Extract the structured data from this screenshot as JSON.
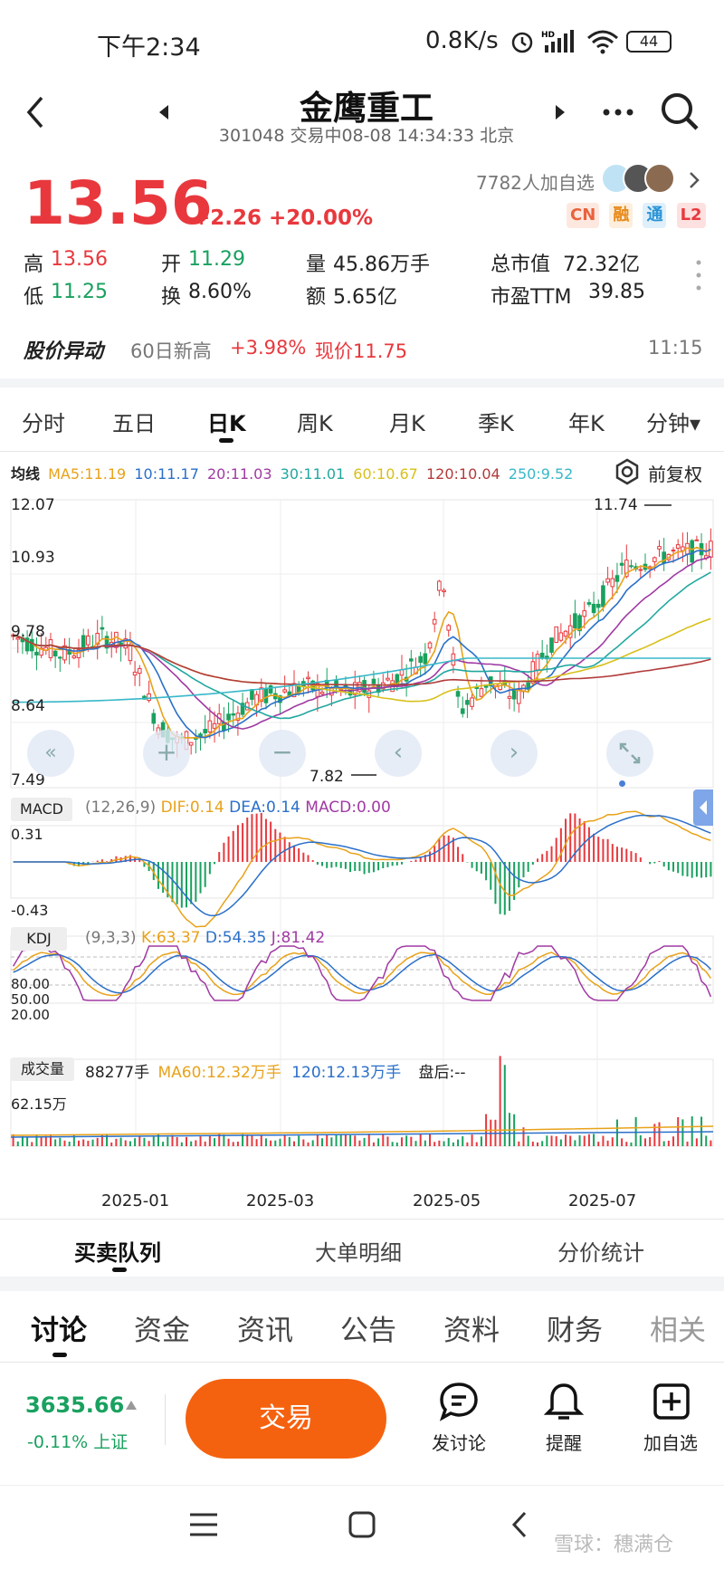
{
  "status_bar": {
    "time": "下午2:34",
    "net": "0.8K/s",
    "battery": "44"
  },
  "header": {
    "title": "金鹰重工",
    "subtitle": "301048 交易中08-08 14:34:33 北京"
  },
  "quote": {
    "price": "13.56",
    "change": "+2.26 +20.00%",
    "watchers": "7782人加自选",
    "badges": [
      "CN",
      "融",
      "通",
      "L2"
    ]
  },
  "stats": {
    "high_label": "高",
    "high": "13.56",
    "low_label": "低",
    "low": "11.25",
    "open_label": "开",
    "open": "11.29",
    "turnover_label": "换",
    "turnover": "8.60%",
    "vol_label": "量",
    "vol": "45.86万手",
    "amount_label": "额",
    "amount": "5.65亿",
    "mktcap_label": "总市值",
    "mktcap": "72.32亿",
    "pe_label": "市盈TTM",
    "pe": "39.85"
  },
  "alert": {
    "label": "股价异动",
    "desc": "60日新高",
    "pct": "+3.98%",
    "price": "现价11.75",
    "time": "11:15"
  },
  "chart_tabs": [
    "分时",
    "五日",
    "日K",
    "周K",
    "月K",
    "季K",
    "年K",
    "分钟▾"
  ],
  "ma_legend": {
    "label": "均线",
    "ma5": "MA5:11.19",
    "ma10": "10:11.17",
    "ma20": "20:11.03",
    "ma30": "30:11.01",
    "ma60": "60:10.67",
    "ma120": "120:10.04",
    "ma250": "250:9.52",
    "adjust": "前复权"
  },
  "main_axis": {
    "ticks": [
      "12.07",
      "10.93",
      "9.78",
      "8.64",
      "7.49"
    ],
    "high_note": "11.74",
    "low_note": "7.82"
  },
  "macd": {
    "label": "MACD",
    "params": "(12,26,9)",
    "dif": "DIF:0.14",
    "dea": "DEA:0.14",
    "macd": "MACD:0.00",
    "top": "0.31",
    "bottom": "-0.43"
  },
  "kdj": {
    "label": "KDJ",
    "params": "(9,3,3)",
    "k": "K:63.37",
    "d": "D:54.35",
    "j": "J:81.42",
    "lv80": "80.00",
    "lv50": "50.00",
    "lv20": "20.00"
  },
  "volume": {
    "label": "成交量",
    "value": "88277手",
    "ma60": "MA60:12.32万手",
    "ma120": "120:12.13万手",
    "after": "盘后:--",
    "top": "62.15万"
  },
  "x_dates": [
    "2025-01",
    "2025-03",
    "2025-05",
    "2025-07"
  ],
  "sub_tabs": [
    "买卖队列",
    "大单明细",
    "分价统计"
  ],
  "bottom_tabs": [
    "讨论",
    "资金",
    "资讯",
    "公告",
    "资料",
    "财务",
    "相关"
  ],
  "index": {
    "value": "3635.66",
    "change": "-0.11% 上证"
  },
  "actions": {
    "trade": "交易",
    "discuss": "发讨论",
    "remind": "提醒",
    "watch": "加自选"
  },
  "watermark": "雪球：穗满仓",
  "colors": {
    "up": "#e8383d",
    "down": "#19a15f",
    "accent": "#f5620f",
    "ma5": "#e8a21a",
    "ma10": "#2a6fc9",
    "ma20": "#a03aa3",
    "ma30": "#22a7a0",
    "ma60": "#d8c01a",
    "ma120": "#b23b3b",
    "ma250": "#38b8c8"
  },
  "chart_data": [
    {
      "type": "candlestick",
      "title": "日K",
      "ylim": [
        7.49,
        12.07
      ],
      "y_ticks": [
        12.07,
        10.93,
        9.78,
        8.64,
        7.49
      ],
      "x_ticks": [
        "2025-01",
        "2025-03",
        "2025-05",
        "2025-07"
      ],
      "high": 11.74,
      "low": 7.82,
      "series": [
        {
          "name": "MA5",
          "last": 11.19
        },
        {
          "name": "MA10",
          "last": 11.17
        },
        {
          "name": "MA20",
          "last": 11.03
        },
        {
          "name": "MA30",
          "last": 11.01
        },
        {
          "name": "MA60",
          "last": 10.67
        },
        {
          "name": "MA120",
          "last": 10.04
        },
        {
          "name": "MA250",
          "last": 9.52
        }
      ]
    },
    {
      "type": "bar",
      "title": "MACD",
      "ylim": [
        -0.43,
        0.31
      ],
      "series": [
        {
          "name": "DIF",
          "last": 0.14
        },
        {
          "name": "DEA",
          "last": 0.14
        },
        {
          "name": "MACD",
          "last": 0.0
        }
      ]
    },
    {
      "type": "line",
      "title": "KDJ",
      "y_ticks": [
        80,
        50,
        20
      ],
      "series": [
        {
          "name": "K",
          "last": 63.37
        },
        {
          "name": "D",
          "last": 54.35
        },
        {
          "name": "J",
          "last": 81.42
        }
      ]
    },
    {
      "type": "bar",
      "title": "成交量",
      "ylim": [
        0,
        621500
      ],
      "series": [
        {
          "name": "成交量",
          "last": 88277
        },
        {
          "name": "MA60",
          "last": 123200
        },
        {
          "name": "MA120",
          "last": 121300
        }
      ]
    }
  ]
}
